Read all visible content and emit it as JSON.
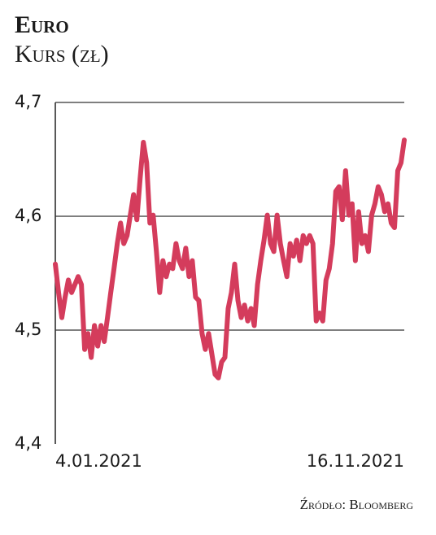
{
  "chart_data": {
    "type": "line",
    "title": "Euro",
    "subtitle": "Kurs (zł)",
    "source": "Źródło: Bloomberg",
    "categories": [
      "4.01.2021",
      null,
      null,
      null,
      null,
      null,
      null,
      null,
      null,
      null,
      null,
      null,
      null,
      null,
      null,
      null,
      null,
      null,
      null,
      null,
      null,
      null,
      null,
      null,
      null,
      null,
      null,
      null,
      null,
      null,
      null,
      null,
      null,
      null,
      null,
      null,
      null,
      null,
      null,
      null,
      null,
      null,
      null,
      null,
      null,
      null,
      null,
      null,
      null,
      null,
      null,
      null,
      null,
      null,
      null,
      null,
      null,
      null,
      null,
      null,
      null,
      null,
      null,
      null,
      null,
      null,
      null,
      null,
      null,
      null,
      null,
      null,
      null,
      null,
      null,
      null,
      null,
      null,
      null,
      null,
      null,
      null,
      null,
      null,
      null,
      null,
      null,
      null,
      null,
      null,
      null,
      null,
      null,
      null,
      null,
      null,
      null,
      null,
      null,
      null,
      null,
      null,
      null,
      null,
      null,
      null,
      null,
      "16.11.2021"
    ],
    "values": [
      4.558,
      4.533,
      4.511,
      4.529,
      4.544,
      4.533,
      4.54,
      4.547,
      4.54,
      4.483,
      4.497,
      4.476,
      4.504,
      4.486,
      4.504,
      4.49,
      4.511,
      4.533,
      4.554,
      4.576,
      4.594,
      4.576,
      4.583,
      4.601,
      4.619,
      4.597,
      4.633,
      4.665,
      4.647,
      4.594,
      4.601,
      4.569,
      4.533,
      4.561,
      4.547,
      4.558,
      4.554,
      4.576,
      4.561,
      4.554,
      4.572,
      4.547,
      4.561,
      4.529,
      4.526,
      4.497,
      4.483,
      4.497,
      4.479,
      4.461,
      4.458,
      4.472,
      4.476,
      4.519,
      4.533,
      4.558,
      4.526,
      4.511,
      4.522,
      4.508,
      4.519,
      4.504,
      4.54,
      4.561,
      4.579,
      4.601,
      4.576,
      4.569,
      4.601,
      4.576,
      4.561,
      4.547,
      4.576,
      4.565,
      4.579,
      4.561,
      4.583,
      4.576,
      4.583,
      4.576,
      4.508,
      4.515,
      4.508,
      4.544,
      4.554,
      4.576,
      4.622,
      4.626,
      4.597,
      4.64,
      4.601,
      4.611,
      4.561,
      4.604,
      4.576,
      4.583,
      4.569,
      4.601,
      4.611,
      4.626,
      4.619,
      4.604,
      4.611,
      4.594,
      4.59,
      4.64,
      4.647,
      4.667
    ],
    "color": "#d43c5c",
    "ylim": [
      4.4,
      4.7
    ],
    "yticks": [
      {
        "value": 4.4,
        "label": "4,4"
      },
      {
        "value": 4.5,
        "label": "4,5"
      },
      {
        "value": 4.6,
        "label": "4,6"
      },
      {
        "value": 4.7,
        "label": "4,7"
      }
    ],
    "grid": true
  }
}
